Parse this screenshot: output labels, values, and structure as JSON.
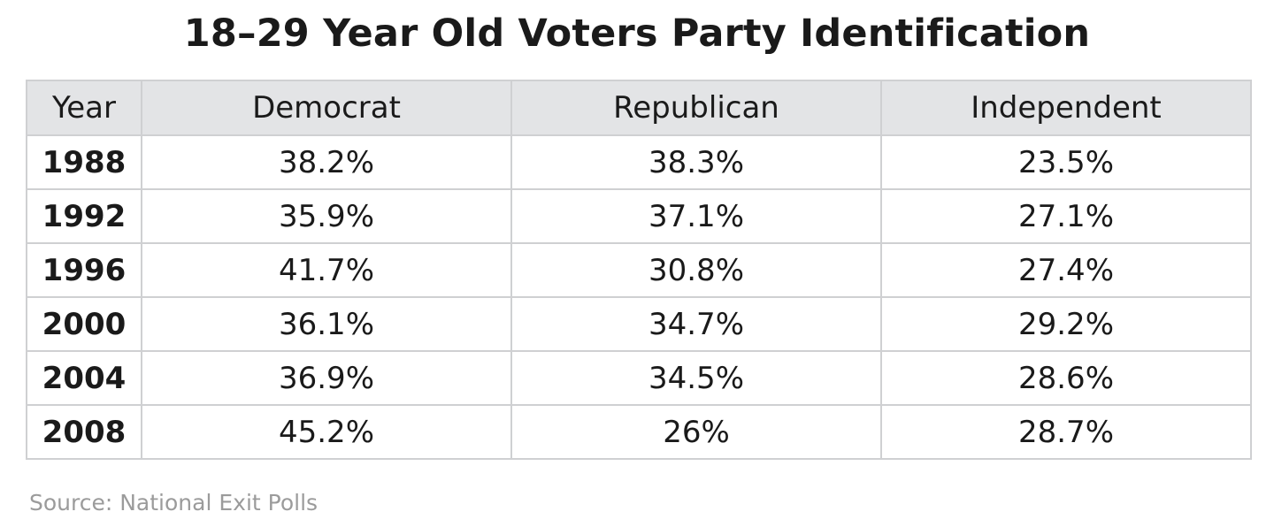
{
  "chart_data": {
    "type": "table",
    "title": "18–29 Year Old Voters Party Identification",
    "columns": [
      "Year",
      "Democrat",
      "Republican",
      "Independent"
    ],
    "rows": [
      [
        "1988",
        "38.2%",
        "38.3%",
        "23.5%"
      ],
      [
        "1992",
        "35.9%",
        "37.1%",
        "27.1%"
      ],
      [
        "1996",
        "41.7%",
        "30.8%",
        "27.4%"
      ],
      [
        "2000",
        "36.1%",
        "34.7%",
        "29.2%"
      ],
      [
        "2004",
        "36.9%",
        "34.5%",
        "28.6%"
      ],
      [
        "2008",
        "45.2%",
        "26%",
        "28.7%"
      ]
    ],
    "source": "Source: National Exit Polls",
    "colors": {
      "header_background": "#e3e4e6",
      "grid": "#cfd0d2",
      "source_text": "#9b9b9b"
    }
  }
}
